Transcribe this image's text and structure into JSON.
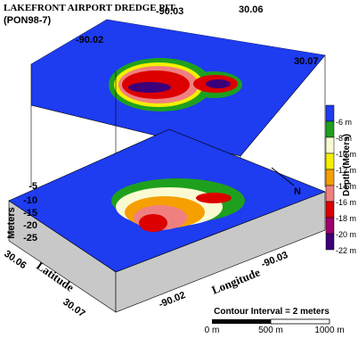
{
  "header": {
    "title": "LAKEFRONT AIRPORT DREDGE PIT",
    "subtitle": "(PON98-7)"
  },
  "top_map": {
    "lon_labels": [
      "-90.02",
      "-90.03"
    ],
    "lat_labels": [
      "30.06",
      "30.07"
    ]
  },
  "block": {
    "z_axis_label": "Meters",
    "z_labels": [
      "-5",
      "-10",
      "-15",
      "-20",
      "-25"
    ],
    "lat_axis_label": "Latitude",
    "lat_labels": [
      "30.06",
      "30.07"
    ],
    "lon_axis_label": "Longitude",
    "lon_labels": [
      "-90.02",
      "-90.03"
    ],
    "north": "N"
  },
  "legend": {
    "title": "Depth (Meters)",
    "labels": [
      "-6 m",
      "-8 m",
      "-10 m",
      "-12 m",
      "-14 m",
      "-16 m",
      "-18 m",
      "-20 m",
      "-22 m"
    ],
    "colors": [
      "#1e3cf0",
      "#1ea01e",
      "#fafad2",
      "#f5f000",
      "#f5a000",
      "#f08080",
      "#dc0000",
      "#a0006e",
      "#3c0078"
    ]
  },
  "scale": {
    "note": "Contour Interval = 2 meters",
    "labels": [
      "0 m",
      "500 m",
      "1000 m"
    ]
  }
}
